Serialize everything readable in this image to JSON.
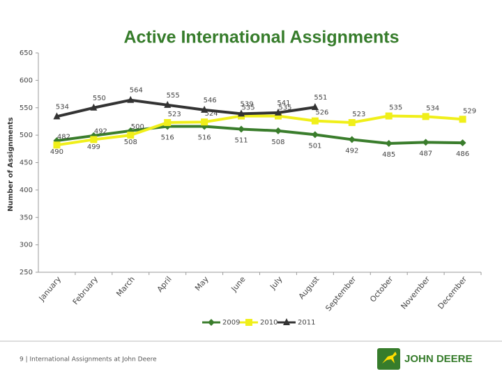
{
  "chart_data": {
    "type": "line",
    "title": "Active International Assignments",
    "y_label": "Number of Assignments",
    "categories": [
      "January",
      "February",
      "March",
      "April",
      "May",
      "June",
      "July",
      "August",
      "September",
      "October",
      "November",
      "December"
    ],
    "series": [
      {
        "name": "2009",
        "color": "#3a7d2c",
        "marker": "diamond",
        "values": [
          490,
          499,
          508,
          516,
          516,
          511,
          508,
          501,
          492,
          485,
          487,
          486
        ]
      },
      {
        "name": "2010",
        "color": "#f0ef1a",
        "marker": "square",
        "values": [
          482,
          492,
          500,
          523,
          524,
          535,
          535,
          526,
          523,
          535,
          534,
          529
        ]
      },
      {
        "name": "2011",
        "color": "#333333",
        "marker": "triangle",
        "values": [
          534,
          550,
          564,
          555,
          546,
          539,
          541,
          551,
          null,
          null,
          null,
          null
        ]
      }
    ],
    "ylim": [
      250,
      650
    ],
    "yticks": [
      250,
      300,
      350,
      400,
      450,
      500,
      550,
      600,
      650
    ],
    "grid": false,
    "legend": "bottom"
  },
  "footer": {
    "text": "9 | International Assignments at John Deere",
    "logo": "JOHN DEERE"
  }
}
